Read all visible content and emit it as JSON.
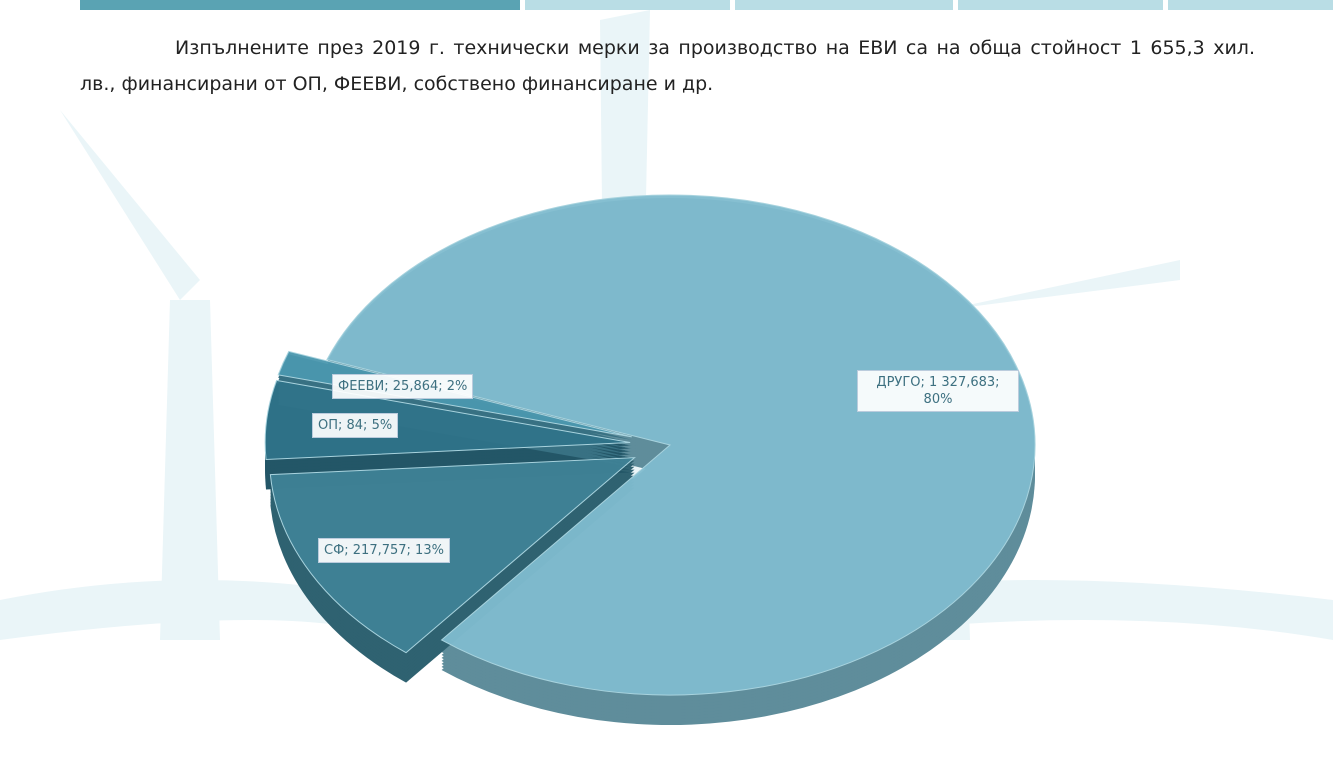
{
  "paragraph": "Изпълнените през 2019 г. технически мерки за производство на ЕВИ са на обща стойност 1 655,3 хил. лв., финансирани от ОП, ФЕЕВИ, собствено финансиране и др.",
  "chart_data": {
    "type": "pie",
    "categories": [
      "ДРУГО",
      "СФ",
      "ОП",
      "ФЕЕВИ"
    ],
    "values": [
      1327.683,
      217.757,
      84,
      25.864
    ],
    "value_labels": [
      "ДРУГО; 1 327,683; 80%",
      "СФ;  217,757; 13%",
      "ОП; 84; 5%",
      "ФЕЕВИ;  25,864; 2%"
    ],
    "colors": [
      "#7fbccf",
      "#3f8296",
      "#2f7389",
      "#4a97ae"
    ]
  }
}
